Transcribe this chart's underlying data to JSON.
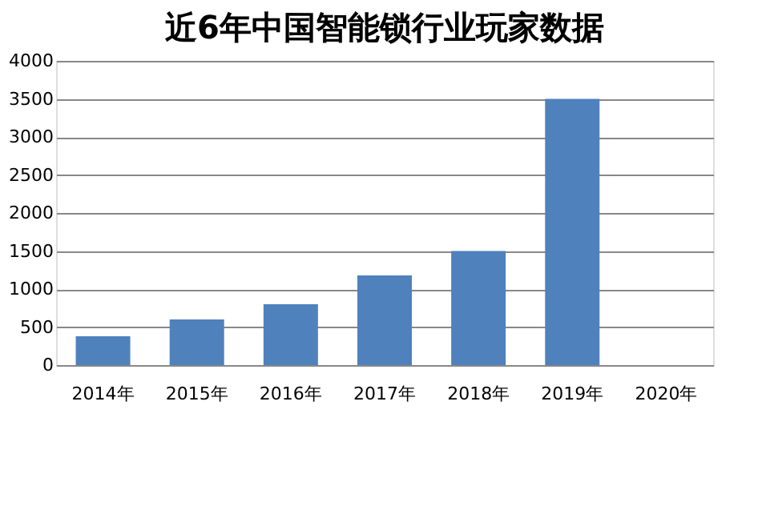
{
  "chart_data": {
    "type": "bar",
    "title": "近6年中国智能锁行业玩家数据",
    "categories": [
      "2014年",
      "2015年",
      "2016年",
      "2017年",
      "2018年",
      "2019年",
      "2020年"
    ],
    "values": [
      380,
      600,
      800,
      1180,
      1500,
      3500,
      null
    ],
    "color": "#4f81bd",
    "ylim": [
      0,
      4000
    ],
    "yticks": [
      0,
      500,
      1000,
      1500,
      2000,
      2500,
      3000,
      3500,
      4000
    ],
    "grid": "y"
  }
}
